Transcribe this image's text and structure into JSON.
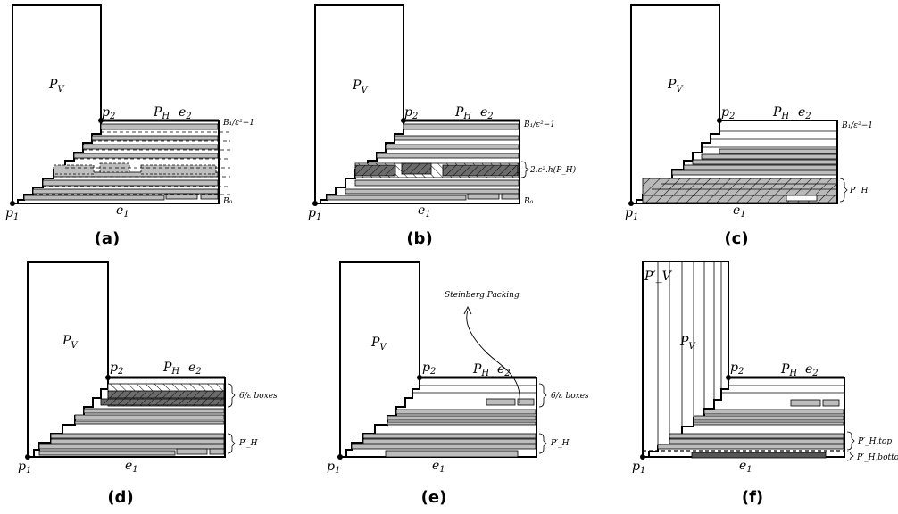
{
  "labels": {
    "pv": "P",
    "pv_sub": "V",
    "ph": "P",
    "ph_sub": "H",
    "e1": "e",
    "e1_sub": "1",
    "e2": "e",
    "e2_sub": "2",
    "p1": "p",
    "p1_sub": "1",
    "p2": "p",
    "p2_sub": "2"
  },
  "panels": [
    {
      "id": "a",
      "caption": "(a)",
      "right_top": "B₁/ε²−1",
      "right_bottom": "B₀"
    },
    {
      "id": "b",
      "caption": "(b)",
      "right_top": "B₁/ε²−1",
      "right_mid": "2.ε².h(P_H)",
      "right_bottom": "B₀"
    },
    {
      "id": "c",
      "caption": "(c)",
      "right_top": "B₁/ε²−1",
      "right_mid": "P′_H"
    },
    {
      "id": "d",
      "caption": "(d)",
      "right_top": "6/ε boxes",
      "right_mid": "P′_H"
    },
    {
      "id": "e",
      "caption": "(e)",
      "right_top": "6/ε boxes",
      "right_mid": "P′_H",
      "annotation": "Steinberg Packing"
    },
    {
      "id": "f",
      "caption": "(f)",
      "pv_prime": "P′_V",
      "right_top": "P′_H,top",
      "right_bottom": "P′_H,bottom"
    }
  ]
}
